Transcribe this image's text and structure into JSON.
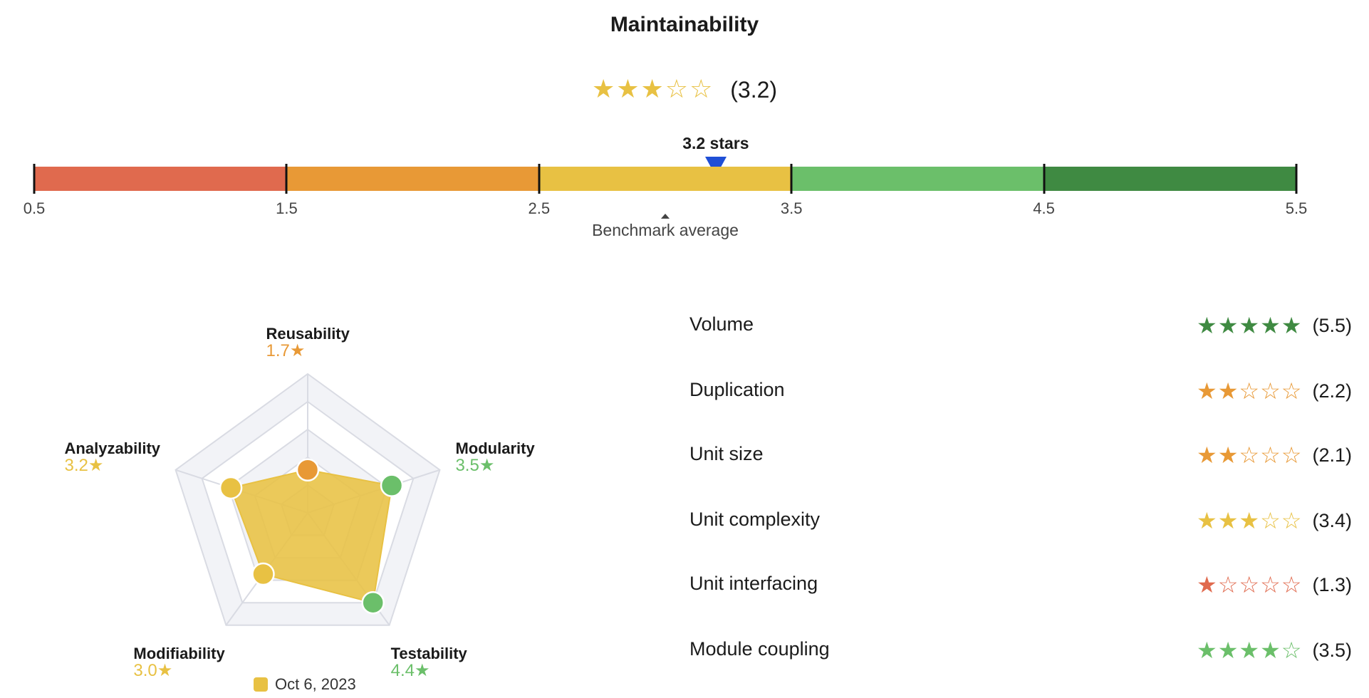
{
  "title": "Maintainability",
  "overall": {
    "stars": "★★★☆☆",
    "value_label": "(3.2)",
    "rating": 3.2,
    "star_color": "#e8c143"
  },
  "scale": {
    "marker_label": "3.2 stars",
    "marker_value": 3.2,
    "marker_color": "#1f4fd6",
    "min": 0.5,
    "max": 5.5,
    "ticks": [
      "0.5",
      "1.5",
      "2.5",
      "3.5",
      "4.5",
      "5.5"
    ],
    "tick_values": [
      0.5,
      1.5,
      2.5,
      3.5,
      4.5,
      5.5
    ],
    "segment_colors": [
      "#e06a4e",
      "#e89936",
      "#e8c143",
      "#6bbf6a",
      "#3f8a42"
    ],
    "benchmark_label": "Benchmark average",
    "benchmark_value": 3.0
  },
  "radar": {
    "fill_color": "#e8c143",
    "axes": [
      {
        "name": "Reusability",
        "score": "1.7★",
        "value": 1.7,
        "color": "#e89936"
      },
      {
        "name": "Modularity",
        "score": "3.5★",
        "value": 3.5,
        "color": "#6bbf6a"
      },
      {
        "name": "Testability",
        "score": "4.4★",
        "value": 4.4,
        "color": "#6bbf6a"
      },
      {
        "name": "Modifiability",
        "score": "3.0★",
        "value": 3.0,
        "color": "#e8c143"
      },
      {
        "name": "Analyzability",
        "score": "3.2★",
        "value": 3.2,
        "color": "#e8c143"
      }
    ],
    "legend_label": "Oct 6, 2023"
  },
  "metrics": [
    {
      "name": "Volume",
      "stars": "★★★★★",
      "value_label": "(5.5)",
      "rating": 5.5,
      "color": "#3f8a42"
    },
    {
      "name": "Duplication",
      "stars": "★★☆☆☆",
      "value_label": "(2.2)",
      "rating": 2.2,
      "color": "#e89936"
    },
    {
      "name": "Unit size",
      "stars": "★★☆☆☆",
      "value_label": "(2.1)",
      "rating": 2.1,
      "color": "#e89936"
    },
    {
      "name": "Unit complexity",
      "stars": "★★★☆☆",
      "value_label": "(3.4)",
      "rating": 3.4,
      "color": "#e8c143"
    },
    {
      "name": "Unit interfacing",
      "stars": "★☆☆☆☆",
      "value_label": "(1.3)",
      "rating": 1.3,
      "color": "#e06a4e"
    },
    {
      "name": "Module coupling",
      "stars": "★★★★☆",
      "value_label": "(3.5)",
      "rating": 3.5,
      "color": "#6bbf6a"
    }
  ]
}
